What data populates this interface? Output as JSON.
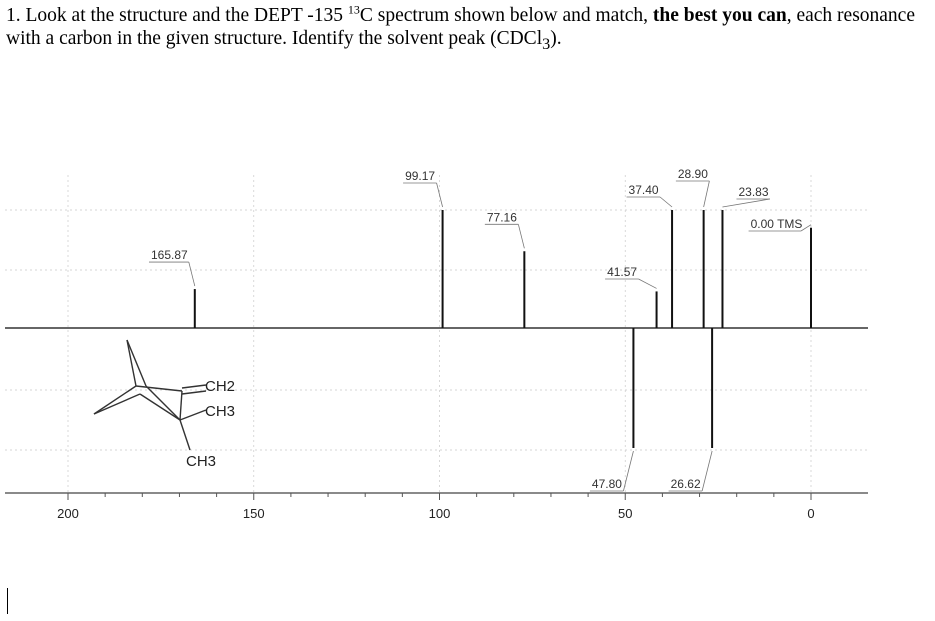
{
  "question": {
    "number": "1.",
    "text_a": " Look at the structure and the DEPT -135 ",
    "superscript": "13",
    "text_b": "C spectrum shown below and match, ",
    "bold_a": "the best you",
    "bold_b": "can",
    "text_c": ", each resonance with a carbon in the given structure.  Identify the solvent peak (CDCl",
    "subscript": "3",
    "text_d": ")."
  },
  "structure": {
    "labels": [
      "CH2",
      "CH3",
      "CH3"
    ]
  },
  "chart_data": {
    "type": "bar",
    "title": "",
    "xlabel": "",
    "ylabel": "",
    "xlim": [
      200,
      0
    ],
    "x_ticks": [
      "200",
      "150",
      "100",
      "50",
      "0"
    ],
    "grid": true,
    "peaks": [
      {
        "ppm": 165.87,
        "label": "165.87",
        "phase": "positive",
        "height": 0.33
      },
      {
        "ppm": 99.17,
        "label": "99.17",
        "phase": "positive",
        "height": 1.0
      },
      {
        "ppm": 77.16,
        "label": "77.16",
        "phase": "positive",
        "height": 0.65
      },
      {
        "ppm": 41.57,
        "label": "41.57",
        "phase": "positive",
        "height": 0.31
      },
      {
        "ppm": 37.4,
        "label": "37.40",
        "phase": "positive",
        "height": 1.0
      },
      {
        "ppm": 28.9,
        "label": "28.90",
        "phase": "positive",
        "height": 1.0
      },
      {
        "ppm": 23.83,
        "label": "23.83",
        "phase": "positive",
        "height": 1.0
      },
      {
        "ppm": 0.0,
        "label": "0.00 TMS",
        "phase": "positive",
        "height": 0.85
      },
      {
        "ppm": 47.8,
        "label": "47.80",
        "phase": "negative",
        "height": 1.0
      },
      {
        "ppm": 26.62,
        "label": "26.62",
        "phase": "negative",
        "height": 1.0
      }
    ]
  }
}
